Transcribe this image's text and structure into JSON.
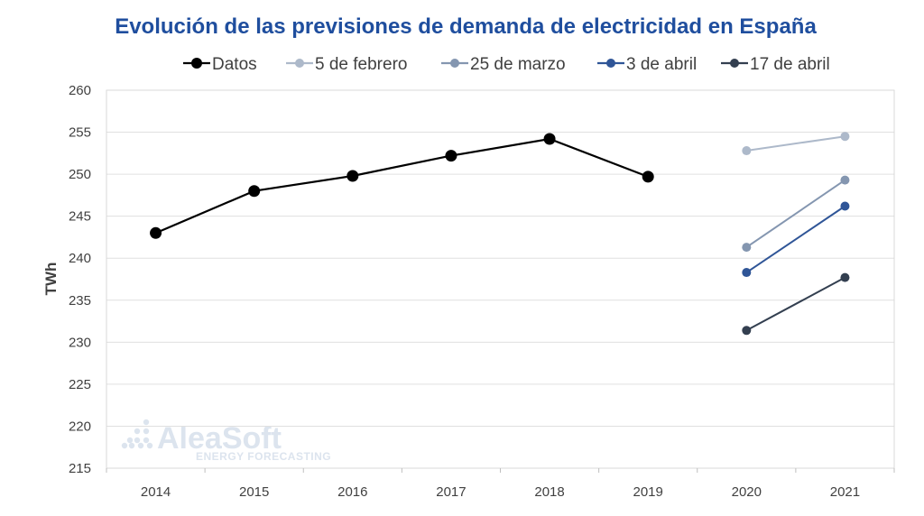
{
  "chart_data": {
    "type": "line",
    "title": "Evolución de las previsiones de demanda de electricidad en España",
    "ylabel": "TWh",
    "xlabel": "",
    "ylim": [
      215,
      260
    ],
    "yticks": [
      215,
      220,
      225,
      230,
      235,
      240,
      245,
      250,
      255,
      260
    ],
    "categories": [
      "2014",
      "2015",
      "2016",
      "2017",
      "2018",
      "2019",
      "2020",
      "2021"
    ],
    "grid": "horizontal",
    "legend_position": "top",
    "series": [
      {
        "name": "Datos",
        "color": "#000000",
        "marker_size": "large",
        "values": [
          243.0,
          248.0,
          249.8,
          252.2,
          254.2,
          249.7,
          null,
          null
        ]
      },
      {
        "name": "5 de febrero",
        "color": "#adb9ca",
        "values": [
          null,
          null,
          null,
          null,
          null,
          null,
          252.8,
          254.5
        ]
      },
      {
        "name": "25 de marzo",
        "color": "#8496b0",
        "values": [
          null,
          null,
          null,
          null,
          null,
          null,
          241.3,
          249.3
        ]
      },
      {
        "name": "3 de abril",
        "color": "#2f5597",
        "values": [
          null,
          null,
          null,
          null,
          null,
          null,
          238.3,
          246.2
        ]
      },
      {
        "name": "17 de abril",
        "color": "#333f50",
        "values": [
          null,
          null,
          null,
          null,
          null,
          null,
          231.4,
          237.7
        ]
      }
    ]
  },
  "watermark": {
    "brand": "AleaSoft",
    "tagline": "ENERGY FORECASTING"
  }
}
